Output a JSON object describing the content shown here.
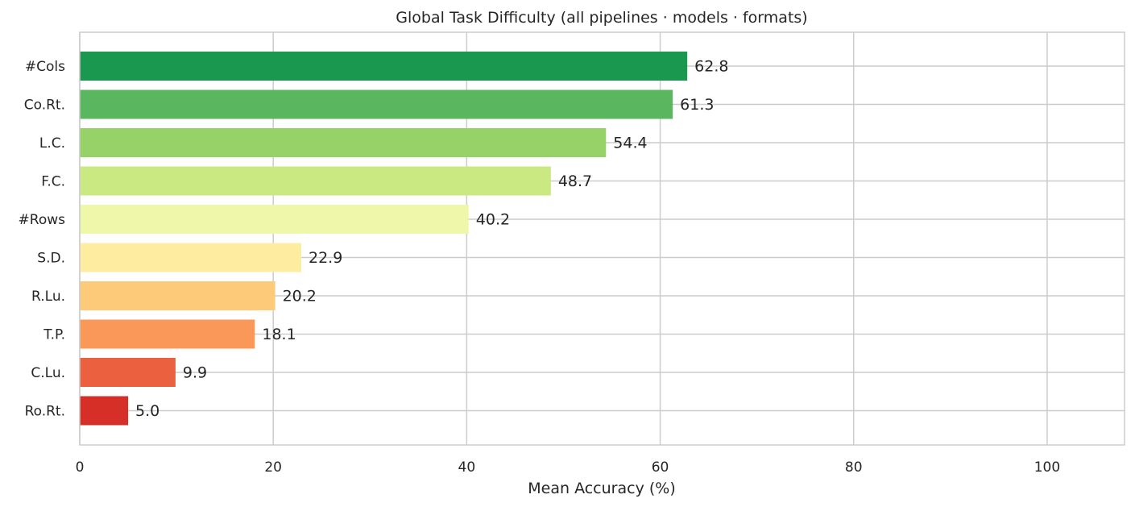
{
  "chart_data": {
    "type": "bar",
    "orientation": "horizontal",
    "title": "Global Task Difficulty (all pipelines · models · formats)",
    "xlabel": "Mean Accuracy (%)",
    "ylabel": "",
    "xlim": [
      0,
      108
    ],
    "xticks": [
      0,
      20,
      40,
      60,
      80,
      100
    ],
    "grid": true,
    "categories": [
      "#Cols",
      "Co.Rt.",
      "L.C.",
      "F.C.",
      "#Rows",
      "S.D.",
      "R.Lu.",
      "T.P.",
      "C.Lu.",
      "Ro.Rt."
    ],
    "values": [
      62.8,
      61.3,
      54.4,
      48.7,
      40.2,
      22.9,
      20.2,
      18.1,
      9.9,
      5.0
    ],
    "value_labels": [
      "62.8",
      "61.3",
      "54.4",
      "48.7",
      "40.2",
      "22.9",
      "20.2",
      "18.1",
      "9.9",
      "5.0"
    ],
    "bar_colors": [
      "#1a9850",
      "#5ab760",
      "#96d268",
      "#cbe982",
      "#eff8aa",
      "#feeda1",
      "#fdca79",
      "#f99858",
      "#eb603f",
      "#d62f27"
    ]
  },
  "colors": {
    "grid": "#cccccc",
    "spine": "#cccccc",
    "text": "#262626",
    "background": "#ffffff"
  }
}
